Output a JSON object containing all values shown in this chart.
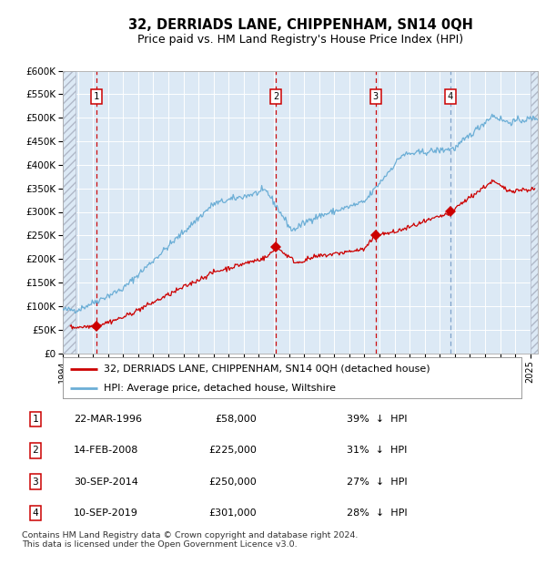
{
  "title": "32, DERRIADS LANE, CHIPPENHAM, SN14 0QH",
  "subtitle": "Price paid vs. HM Land Registry's House Price Index (HPI)",
  "xlim": [
    1994.0,
    2025.5
  ],
  "ylim": [
    0,
    600000
  ],
  "yticks": [
    0,
    50000,
    100000,
    150000,
    200000,
    250000,
    300000,
    350000,
    400000,
    450000,
    500000,
    550000,
    600000
  ],
  "ytick_labels": [
    "£0",
    "£50K",
    "£100K",
    "£150K",
    "£200K",
    "£250K",
    "£300K",
    "£350K",
    "£400K",
    "£450K",
    "£500K",
    "£550K",
    "£600K"
  ],
  "plot_bg_color": "#dce9f5",
  "hpi_color": "#6baed6",
  "price_color": "#cc0000",
  "marker_color": "#cc0000",
  "vline_color_red": "#cc0000",
  "vline_color_blue": "#7a9ec8",
  "grid_color": "#ffffff",
  "hatch_color": "#c0c8d8",
  "transactions": [
    {
      "num": 1,
      "date_str": "22-MAR-1996",
      "year": 1996.22,
      "price": 58000,
      "pct": "39%",
      "vline": "red"
    },
    {
      "num": 2,
      "date_str": "14-FEB-2008",
      "year": 2008.12,
      "price": 225000,
      "pct": "31%",
      "vline": "red"
    },
    {
      "num": 3,
      "date_str": "30-SEP-2014",
      "year": 2014.75,
      "price": 250000,
      "pct": "27%",
      "vline": "red"
    },
    {
      "num": 4,
      "date_str": "10-SEP-2019",
      "year": 2019.7,
      "price": 301000,
      "pct": "28%",
      "vline": "blue"
    }
  ],
  "legend_line1": "32, DERRIADS LANE, CHIPPENHAM, SN14 0QH (detached house)",
  "legend_line2": "HPI: Average price, detached house, Wiltshire",
  "footer": "Contains HM Land Registry data © Crown copyright and database right 2024.\nThis data is licensed under the Open Government Licence v3.0."
}
